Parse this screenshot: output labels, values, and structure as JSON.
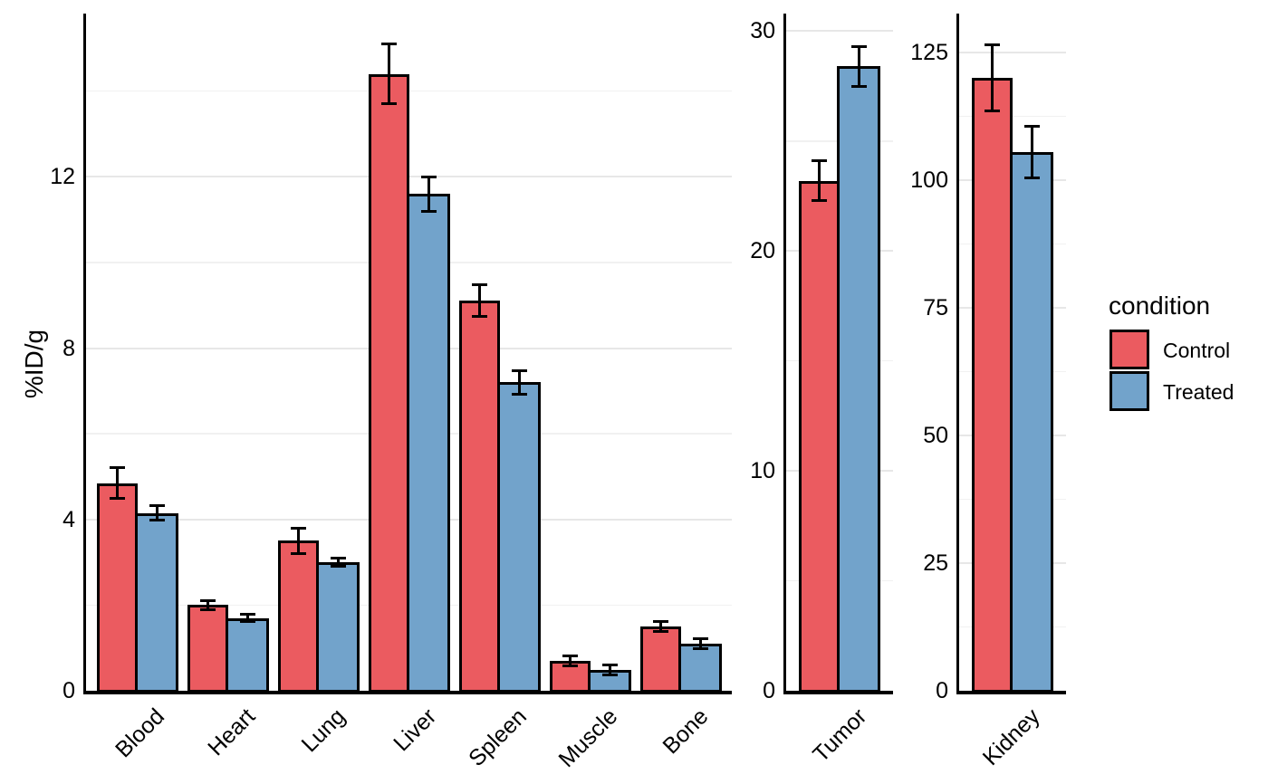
{
  "colors": {
    "control": "#EB5B60",
    "treated": "#72A3CB",
    "bar_border": "#000000",
    "grid_major": "#e7e7e7",
    "grid_minor": "#f1f1f1",
    "axis": "#000000",
    "text": "#000000",
    "background": "#ffffff"
  },
  "legend": {
    "title": "condition",
    "entries": [
      {
        "label": "Control",
        "color_key": "control"
      },
      {
        "label": "Treated",
        "color_key": "treated"
      }
    ]
  },
  "chart_data": {
    "type": "bar",
    "title": "",
    "ylabel": "%ID/g",
    "xlabel": "",
    "grid": "on",
    "legend_position": "right",
    "error_bars": true,
    "series_names": [
      "Control",
      "Treated"
    ],
    "panels": [
      {
        "name": "organs",
        "categories": [
          "Blood",
          "Heart",
          "Lung",
          "Liver",
          "Spleen",
          "Muscle",
          "Bone"
        ],
        "series": [
          {
            "name": "Control",
            "values": [
              4.85,
              2.0,
              3.5,
              14.4,
              9.1,
              0.7,
              1.5
            ],
            "errors": [
              0.35,
              0.1,
              0.3,
              0.7,
              0.37,
              0.12,
              0.12
            ]
          },
          {
            "name": "Treated",
            "values": [
              4.15,
              1.7,
              3.0,
              11.6,
              7.2,
              0.48,
              1.1
            ],
            "errors": [
              0.17,
              0.08,
              0.1,
              0.4,
              0.27,
              0.12,
              0.12
            ]
          }
        ],
        "ylim": [
          0,
          15.81
        ],
        "yticks": [
          0,
          4,
          8,
          12
        ],
        "minor_gridlines": [
          2,
          6,
          10,
          14
        ]
      },
      {
        "name": "tumor",
        "categories": [
          "Tumor"
        ],
        "series": [
          {
            "name": "Control",
            "values": [
              23.2
            ],
            "errors": [
              0.9
            ]
          },
          {
            "name": "Treated",
            "values": [
              28.4
            ],
            "errors": [
              0.9
            ]
          }
        ],
        "ylim": [
          0,
          30.8
        ],
        "yticks": [
          0,
          10,
          20,
          30
        ],
        "minor_gridlines": [
          5,
          15,
          25
        ]
      },
      {
        "name": "kidney",
        "categories": [
          "Kidney"
        ],
        "series": [
          {
            "name": "Control",
            "values": [
              120
            ],
            "errors": [
              6.5
            ]
          },
          {
            "name": "Treated",
            "values": [
              105.5
            ],
            "errors": [
              5
            ]
          }
        ],
        "ylim": [
          0,
          132.6
        ],
        "yticks": [
          0,
          25,
          50,
          75,
          100,
          125
        ],
        "minor_gridlines": [
          12.5,
          37.5,
          62.5,
          87.5,
          112.5
        ]
      }
    ]
  }
}
